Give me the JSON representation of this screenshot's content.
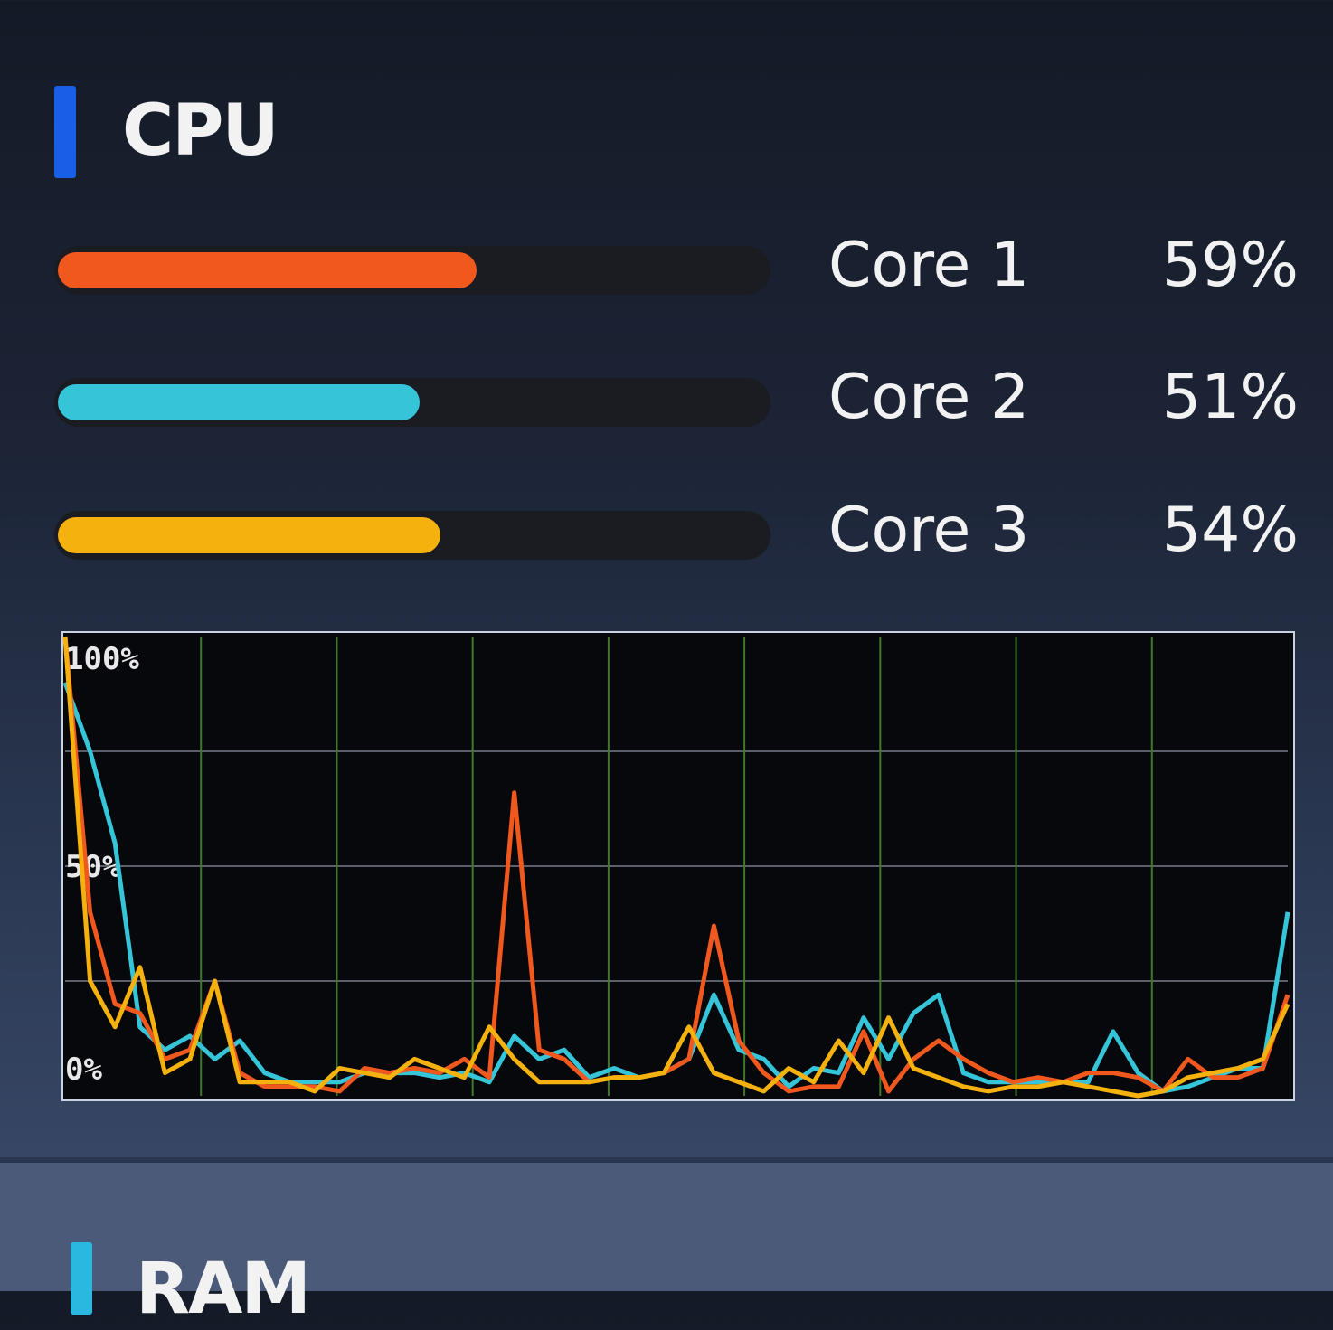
{
  "cpu": {
    "title": "CPU",
    "accent_color": "#1a5ee8",
    "cores": [
      {
        "label": "Core 1",
        "value_text": "59%",
        "percent": 59,
        "color": "#f0581e"
      },
      {
        "label": "Core 2",
        "value_text": "51%",
        "percent": 51,
        "color": "#35c4d8"
      },
      {
        "label": "Core 3",
        "value_text": "54%",
        "percent": 54,
        "color": "#f5b10e"
      }
    ]
  },
  "chart_data": {
    "type": "line",
    "ylim": [
      0,
      100
    ],
    "ytick_labels": [
      "100%",
      "50%",
      "0%"
    ],
    "grid": true,
    "series": [
      {
        "color": "#35c4d8",
        "values": [
          90,
          75,
          55,
          15,
          10,
          13,
          8,
          12,
          5,
          3,
          3,
          3,
          5,
          5,
          5,
          4,
          5,
          3,
          13,
          8,
          10,
          4,
          6,
          4,
          5,
          8,
          22,
          10,
          8,
          2,
          6,
          5,
          17,
          8,
          18,
          22,
          5,
          3,
          3,
          3,
          3,
          3,
          14,
          5,
          1,
          2,
          4,
          6,
          6,
          40
        ]
      },
      {
        "color": "#f0581e",
        "values": [
          100,
          40,
          20,
          18,
          8,
          10,
          25,
          5,
          2,
          2,
          2,
          1,
          6,
          5,
          6,
          5,
          8,
          4,
          66,
          10,
          8,
          3,
          4,
          4,
          5,
          8,
          37,
          12,
          5,
          1,
          2,
          2,
          14,
          1,
          8,
          12,
          8,
          5,
          3,
          4,
          3,
          5,
          5,
          4,
          1,
          8,
          4,
          4,
          6,
          22
        ]
      },
      {
        "color": "#f5b10e",
        "values": [
          100,
          25,
          15,
          28,
          5,
          8,
          25,
          3,
          3,
          3,
          1,
          6,
          5,
          4,
          8,
          6,
          4,
          15,
          8,
          3,
          3,
          3,
          4,
          4,
          5,
          15,
          5,
          3,
          1,
          6,
          3,
          12,
          5,
          17,
          6,
          4,
          2,
          1,
          2,
          2,
          3,
          2,
          1,
          0,
          1,
          4,
          5,
          6,
          8,
          20
        ]
      }
    ]
  },
  "ram": {
    "title": "RAM",
    "accent_color": "#2bb8e0"
  }
}
